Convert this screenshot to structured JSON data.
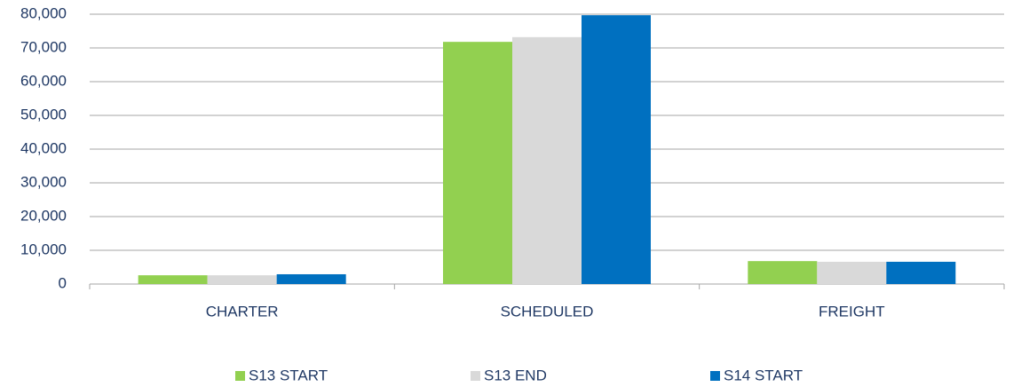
{
  "chart_data": {
    "type": "bar",
    "categories": [
      "CHARTER",
      "SCHEDULED",
      "FREIGHT"
    ],
    "series": [
      {
        "name": "S13 START",
        "color": "#92d050",
        "values": [
          2600,
          71800,
          6800
        ]
      },
      {
        "name": "S13 END",
        "color": "#d9d9d9",
        "values": [
          2600,
          73200,
          6600
        ]
      },
      {
        "name": "S14 START",
        "color": "#0070c0",
        "values": [
          2900,
          79700,
          6600
        ]
      }
    ],
    "ylim": [
      0,
      80000
    ],
    "yticks": [
      0,
      {
        "value": 10000,
        "label": "10,000"
      },
      {
        "value": 20000,
        "label": "20,000"
      },
      {
        "value": 30000,
        "label": "30,000"
      },
      {
        "value": 40000,
        "label": "40,000"
      },
      {
        "value": 50000,
        "label": "50,000"
      },
      {
        "value": 60000,
        "label": "60,000"
      },
      {
        "value": 70000,
        "label": "70,000"
      },
      {
        "value": 80000,
        "label": "80,000"
      }
    ],
    "grid": true
  }
}
